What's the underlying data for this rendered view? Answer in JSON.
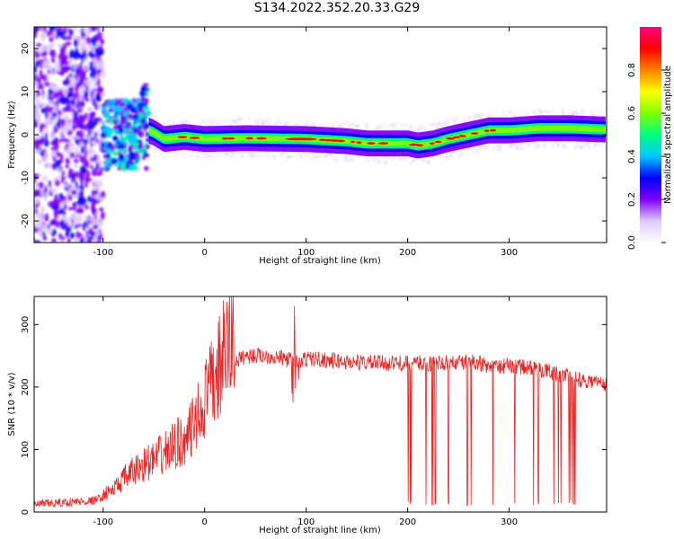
{
  "title": "S134.2022.352.20.33.G29",
  "chart_data": [
    {
      "type": "heatmap",
      "xlabel": "Height of straight line (km)",
      "ylabel": "Frequency (Hz)",
      "xlim": [
        -168,
        396
      ],
      "ylim": [
        -25,
        25
      ],
      "xticks": [
        -100,
        0,
        100,
        200,
        300
      ],
      "yticks": [
        -20,
        -10,
        0,
        10,
        20
      ],
      "colorbar": {
        "label": "Normalized spectral amplitude",
        "range": [
          0,
          1
        ],
        "ticks": [
          "0.0",
          "0.2",
          "0.4",
          "0.6",
          "0.8"
        ],
        "colors": [
          "#ffffff",
          "#e0c8ff",
          "#8000ff",
          "#0000ff",
          "#00c8ff",
          "#00ff80",
          "#80ff00",
          "#ffff00",
          "#ff8000",
          "#ff0000",
          "#ff0080"
        ]
      },
      "ridge": {
        "x": [
          -110,
          -90,
          -70,
          -60,
          -50,
          -40,
          -20,
          0,
          40,
          100,
          140,
          160,
          180,
          200,
          210,
          225,
          240,
          260,
          280,
          300,
          330,
          360,
          396
        ],
        "freq": [
          0,
          0,
          0,
          1.5,
          0.5,
          -1,
          -0.5,
          -1,
          -0.8,
          -1,
          -1.5,
          -2,
          -2,
          -2,
          -2.5,
          -2,
          -1,
          0,
          1,
          1,
          1.5,
          1.5,
          1.2
        ]
      },
      "grid": false
    },
    {
      "type": "line",
      "xlabel": "Height of straight line (km)",
      "ylabel": "SNR (10 * v/v)",
      "xlim": [
        -168,
        396
      ],
      "ylim": [
        0,
        345
      ],
      "xticks": [
        -100,
        0,
        100,
        200,
        300
      ],
      "yticks": [
        0,
        100,
        200,
        300
      ],
      "color": "#ee2222",
      "series": [
        {
          "x": [
            -168,
            -140,
            -110,
            -90,
            -80,
            -70,
            -60,
            -50,
            -40,
            -30,
            -20,
            -10,
            0,
            10,
            20,
            30,
            40,
            60,
            80,
            90,
            100,
            110,
            140,
            180,
            200,
            220,
            240,
            260,
            270,
            280,
            300,
            320,
            340,
            360,
            380,
            396
          ],
          "y": [
            12,
            15,
            18,
            30,
            45,
            55,
            65,
            70,
            80,
            90,
            100,
            115,
            150,
            180,
            215,
            240,
            250,
            250,
            245,
            240,
            245,
            245,
            240,
            238,
            238,
            238,
            238,
            240,
            240,
            230,
            235,
            230,
            225,
            215,
            210,
            205
          ]
        }
      ],
      "dropouts_range": [
        198,
        372
      ],
      "dropout_level": 10,
      "grid": false
    }
  ]
}
